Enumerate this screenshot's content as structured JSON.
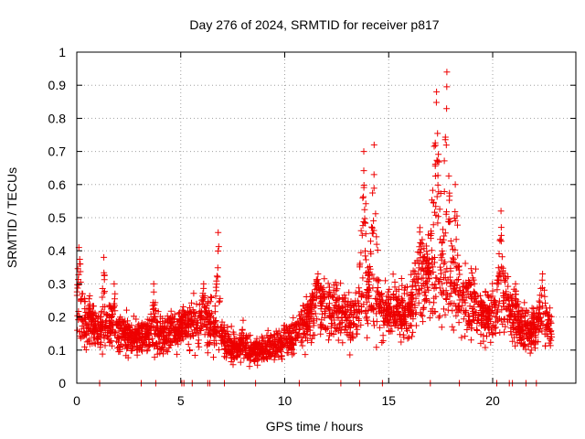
{
  "chart_data": {
    "type": "scatter",
    "title": "Day 276 of 2024, SRMTID for receiver p817",
    "xlabel": "GPS time / hours",
    "ylabel": "SRMTID / TECUs",
    "xlim": [
      0,
      24
    ],
    "ylim": [
      0,
      1
    ],
    "xticks": [
      "0",
      "5",
      "10",
      "15",
      "20"
    ],
    "yticks": [
      "0",
      "0.1",
      "0.2",
      "0.3",
      "0.4",
      "0.5",
      "0.6",
      "0.7",
      "0.8",
      "0.9",
      "1"
    ],
    "grid": true,
    "marker": "+",
    "color": "#ee0000",
    "profile": [
      [
        0,
        0.21
      ],
      [
        0.3,
        0.2
      ],
      [
        0.8,
        0.17
      ],
      [
        1.5,
        0.17
      ],
      [
        2.5,
        0.14
      ],
      [
        3.5,
        0.14
      ],
      [
        4.5,
        0.15
      ],
      [
        5.5,
        0.18
      ],
      [
        6.5,
        0.18
      ],
      [
        7.0,
        0.13
      ],
      [
        7.7,
        0.1
      ],
      [
        8.5,
        0.1
      ],
      [
        9.5,
        0.11
      ],
      [
        10.5,
        0.15
      ],
      [
        11.5,
        0.22
      ],
      [
        12.5,
        0.22
      ],
      [
        13.3,
        0.19
      ],
      [
        13.7,
        0.25
      ],
      [
        14.2,
        0.26
      ],
      [
        14.8,
        0.22
      ],
      [
        15.8,
        0.21
      ],
      [
        16.3,
        0.23
      ],
      [
        16.8,
        0.3
      ],
      [
        17.3,
        0.3
      ],
      [
        17.8,
        0.3
      ],
      [
        18.4,
        0.25
      ],
      [
        19.0,
        0.25
      ],
      [
        19.5,
        0.2
      ],
      [
        20.0,
        0.21
      ],
      [
        20.5,
        0.26
      ],
      [
        21.0,
        0.19
      ],
      [
        21.7,
        0.16
      ],
      [
        22.3,
        0.18
      ],
      [
        22.8,
        0.17
      ]
    ],
    "excursions": [
      {
        "x": 0.1,
        "width": 0.3,
        "peak": 0.41
      },
      {
        "x": 1.3,
        "width": 0.15,
        "peak": 0.38
      },
      {
        "x": 1.8,
        "width": 0.2,
        "peak": 0.3
      },
      {
        "x": 3.7,
        "width": 0.2,
        "peak": 0.3
      },
      {
        "x": 6.1,
        "width": 0.25,
        "peak": 0.3
      },
      {
        "x": 6.8,
        "width": 0.2,
        "peak": 0.455
      },
      {
        "x": 8.0,
        "width": 0.3,
        "peak": 0.19
      },
      {
        "x": 11.6,
        "width": 0.5,
        "peak": 0.33
      },
      {
        "x": 13.8,
        "width": 0.3,
        "peak": 0.7
      },
      {
        "x": 14.3,
        "width": 0.3,
        "peak": 0.72
      },
      {
        "x": 16.5,
        "width": 0.6,
        "peak": 0.47
      },
      {
        "x": 17.3,
        "width": 0.4,
        "peak": 0.88
      },
      {
        "x": 17.8,
        "width": 0.3,
        "peak": 0.94
      },
      {
        "x": 18.2,
        "width": 0.3,
        "peak": 0.6
      },
      {
        "x": 20.4,
        "width": 0.25,
        "peak": 0.52
      },
      {
        "x": 21.1,
        "width": 0.2,
        "peak": 0.3
      },
      {
        "x": 22.4,
        "width": 0.3,
        "peak": 0.33
      }
    ],
    "zero_points": [
      1.1,
      3.1,
      3.8,
      5.05,
      5.15,
      5.55,
      6.3,
      6.4,
      7.1,
      8.6,
      10.7,
      12.7,
      13.6,
      14.7,
      17.0,
      18.4,
      20.2,
      20.8,
      20.95,
      21.6,
      22.1
    ],
    "x_range": [
      0.0,
      22.85
    ],
    "point_count": 2900,
    "random_seed": 276
  }
}
